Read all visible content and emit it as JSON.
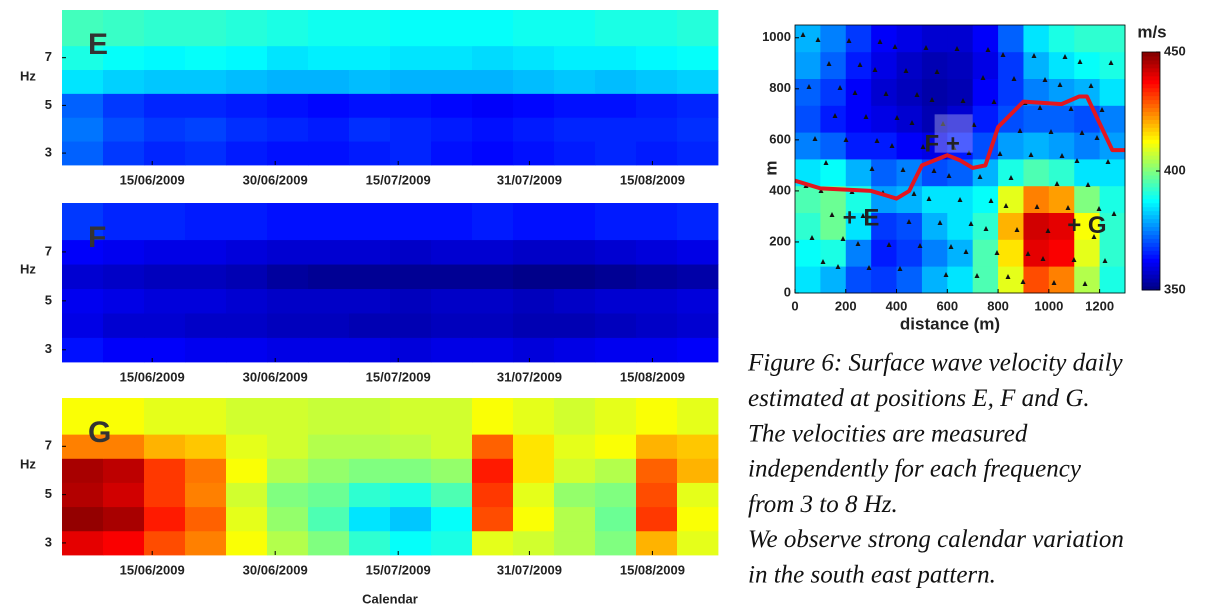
{
  "chart_data": [
    {
      "type": "heatmap",
      "label": "E",
      "ylabel": "Hz",
      "x_edges": [
        155,
        160,
        165,
        170,
        175,
        180,
        185,
        190,
        195,
        200,
        205,
        210,
        215,
        220,
        225,
        230,
        235
      ],
      "y_edges": [
        2.5,
        3.5,
        4.5,
        5.5,
        6.5,
        7.5,
        9
      ],
      "values": [
        [
          372,
          368,
          366,
          367,
          365,
          364,
          364,
          365,
          366,
          364,
          363,
          364,
          365,
          366,
          365,
          366
        ],
        [
          374,
          370,
          368,
          369,
          367,
          366,
          365,
          367,
          366,
          365,
          364,
          365,
          366,
          366,
          366,
          367
        ],
        [
          372,
          368,
          366,
          366,
          365,
          364,
          363,
          364,
          364,
          363,
          362,
          363,
          364,
          364,
          365,
          366
        ],
        [
          385,
          383,
          382,
          382,
          381,
          380,
          380,
          381,
          380,
          380,
          380,
          381,
          382,
          381,
          382,
          383
        ],
        [
          390,
          388,
          387,
          388,
          387,
          385,
          386,
          386,
          385,
          385,
          384,
          385,
          386,
          386,
          387,
          388
        ],
        [
          394,
          393,
          392,
          392,
          391,
          390,
          389,
          389,
          388,
          388,
          388,
          389,
          389,
          390,
          390,
          391
        ]
      ],
      "xlim": [
        155,
        235
      ],
      "ylim": [
        2.5,
        9
      ],
      "xticks": [
        {
          "value": 166,
          "label": "15/06/2009"
        },
        {
          "value": 181,
          "label": "30/06/2009"
        },
        {
          "value": 196,
          "label": "15/07/2009"
        },
        {
          "value": 212,
          "label": "31/07/2009"
        },
        {
          "value": 227,
          "label": "15/08/2009"
        }
      ],
      "yticks": [
        3,
        5,
        7
      ]
    },
    {
      "type": "heatmap",
      "label": "F",
      "ylabel": "Hz",
      "x_edges": [
        155,
        160,
        165,
        170,
        175,
        180,
        185,
        190,
        195,
        200,
        205,
        210,
        215,
        220,
        225,
        230,
        235
      ],
      "y_edges": [
        2.5,
        3.5,
        4.5,
        5.5,
        6.5,
        7.5,
        9
      ],
      "values": [
        [
          364,
          362,
          362,
          361,
          361,
          360,
          360,
          360,
          359,
          360,
          360,
          359,
          360,
          361,
          361,
          362
        ],
        [
          360,
          358,
          358,
          357,
          357,
          356,
          356,
          355,
          355,
          356,
          356,
          355,
          355,
          356,
          357,
          358
        ],
        [
          361,
          360,
          359,
          359,
          358,
          357,
          357,
          357,
          356,
          357,
          357,
          356,
          357,
          358,
          358,
          359
        ],
        [
          358,
          357,
          356,
          356,
          355,
          353,
          352,
          352,
          352,
          352,
          352,
          351,
          351,
          352,
          353,
          354
        ],
        [
          362,
          361,
          360,
          360,
          359,
          358,
          358,
          358,
          357,
          358,
          358,
          357,
          357,
          358,
          359,
          360
        ],
        [
          368,
          366,
          366,
          365,
          365,
          364,
          364,
          364,
          364,
          364,
          365,
          364,
          364,
          365,
          365,
          366
        ]
      ],
      "xlim": [
        155,
        235
      ],
      "ylim": [
        2.5,
        9
      ],
      "xticks": [
        {
          "value": 166,
          "label": "15/06/2009"
        },
        {
          "value": 181,
          "label": "30/06/2009"
        },
        {
          "value": 196,
          "label": "15/07/2009"
        },
        {
          "value": 212,
          "label": "31/07/2009"
        },
        {
          "value": 227,
          "label": "15/08/2009"
        }
      ],
      "yticks": [
        3,
        5,
        7
      ]
    },
    {
      "type": "heatmap",
      "label": "G",
      "ylabel": "Hz",
      "xlabel": "Calendar",
      "x_edges": [
        155,
        160,
        165,
        170,
        175,
        180,
        185,
        190,
        195,
        200,
        205,
        210,
        215,
        220,
        225,
        230,
        235
      ],
      "y_edges": [
        2.5,
        3.5,
        4.5,
        5.5,
        6.5,
        7.5,
        9
      ],
      "values": [
        [
          440,
          438,
          430,
          425,
          412,
          405,
          400,
          392,
          388,
          390,
          410,
          408,
          405,
          400,
          420,
          410
        ],
        [
          448,
          446,
          435,
          428,
          410,
          402,
          395,
          385,
          382,
          388,
          430,
          412,
          405,
          398,
          432,
          412
        ],
        [
          445,
          442,
          432,
          425,
          408,
          400,
          398,
          392,
          390,
          395,
          432,
          410,
          402,
          400,
          430,
          410
        ],
        [
          446,
          444,
          432,
          426,
          412,
          405,
          402,
          400,
          400,
          402,
          435,
          415,
          408,
          405,
          428,
          420
        ],
        [
          425,
          425,
          420,
          418,
          410,
          408,
          405,
          405,
          406,
          408,
          428,
          415,
          410,
          412,
          420,
          418
        ],
        [
          412,
          412,
          410,
          410,
          408,
          408,
          407,
          407,
          408,
          408,
          412,
          410,
          408,
          410,
          412,
          410
        ]
      ],
      "xlim": [
        155,
        235
      ],
      "ylim": [
        2.5,
        9
      ],
      "xticks": [
        {
          "value": 166,
          "label": "15/06/2009"
        },
        {
          "value": 181,
          "label": "30/06/2009"
        },
        {
          "value": 196,
          "label": "15/07/2009"
        },
        {
          "value": 212,
          "label": "31/07/2009"
        },
        {
          "value": 227,
          "label": "15/08/2009"
        }
      ],
      "yticks": [
        3,
        5,
        7
      ]
    },
    {
      "type": "map",
      "xlabel": "distance (m)",
      "ylabel": "m",
      "colorbar_label": "m/s",
      "colormap": "jet",
      "clim": [
        350,
        450
      ],
      "cticks": [
        350,
        400,
        450
      ],
      "x_edges": [
        0,
        100,
        200,
        300,
        400,
        500,
        600,
        700,
        800,
        900,
        1000,
        1100,
        1200,
        1300
      ],
      "y_edges": [
        0,
        105,
        210,
        315,
        420,
        525,
        630,
        735,
        840,
        945,
        1050
      ],
      "values": [
        [
          385,
          380,
          370,
          368,
          372,
          380,
          385,
          395,
          410,
          430,
          425,
          405,
          390
        ],
        [
          388,
          390,
          375,
          365,
          368,
          375,
          380,
          395,
          415,
          440,
          438,
          410,
          392
        ],
        [
          392,
          398,
          385,
          368,
          370,
          380,
          385,
          392,
          420,
          442,
          440,
          412,
          392
        ],
        [
          395,
          398,
          390,
          378,
          380,
          385,
          385,
          388,
          410,
          425,
          422,
          400,
          390
        ],
        [
          385,
          388,
          380,
          372,
          375,
          370,
          372,
          380,
          390,
          395,
          392,
          385,
          385
        ],
        [
          375,
          372,
          365,
          365,
          362,
          360,
          365,
          370,
          378,
          380,
          378,
          375,
          378
        ],
        [
          370,
          365,
          362,
          360,
          358,
          355,
          358,
          365,
          370,
          372,
          372,
          370,
          375
        ],
        [
          372,
          368,
          362,
          358,
          356,
          354,
          355,
          362,
          368,
          375,
          378,
          380,
          385
        ],
        [
          378,
          372,
          365,
          360,
          357,
          355,
          356,
          360,
          368,
          380,
          385,
          388,
          390
        ],
        [
          380,
          375,
          368,
          362,
          360,
          358,
          358,
          362,
          372,
          385,
          390,
          392,
          392
        ]
      ],
      "xlim": [
        0,
        1300
      ],
      "ylim": [
        0,
        1050
      ],
      "xticks": [
        0,
        200,
        400,
        600,
        800,
        1000,
        1200
      ],
      "yticks": [
        0,
        200,
        400,
        600,
        800,
        1000
      ],
      "boundary": {
        "color": "#e3161f",
        "x": [
          0,
          100,
          300,
          400,
          450,
          500,
          600,
          650,
          700,
          750,
          800,
          900,
          1050,
          1120,
          1150,
          1250,
          1300
        ],
        "y": [
          440,
          410,
          400,
          370,
          400,
          500,
          540,
          520,
          490,
          500,
          650,
          750,
          740,
          770,
          770,
          560,
          560
        ]
      },
      "annotations": [
        "+ E",
        "F +",
        "+ G"
      ]
    }
  ],
  "caption": {
    "lines": [
      "Figure 6: Surface wave velocity daily",
      "estimated at positions E, F and G.",
      "The velocities are measured",
      "independently for each frequency",
      "from 3 to 8 Hz.",
      "We observe strong calendar variation",
      "in the south east pattern."
    ]
  }
}
